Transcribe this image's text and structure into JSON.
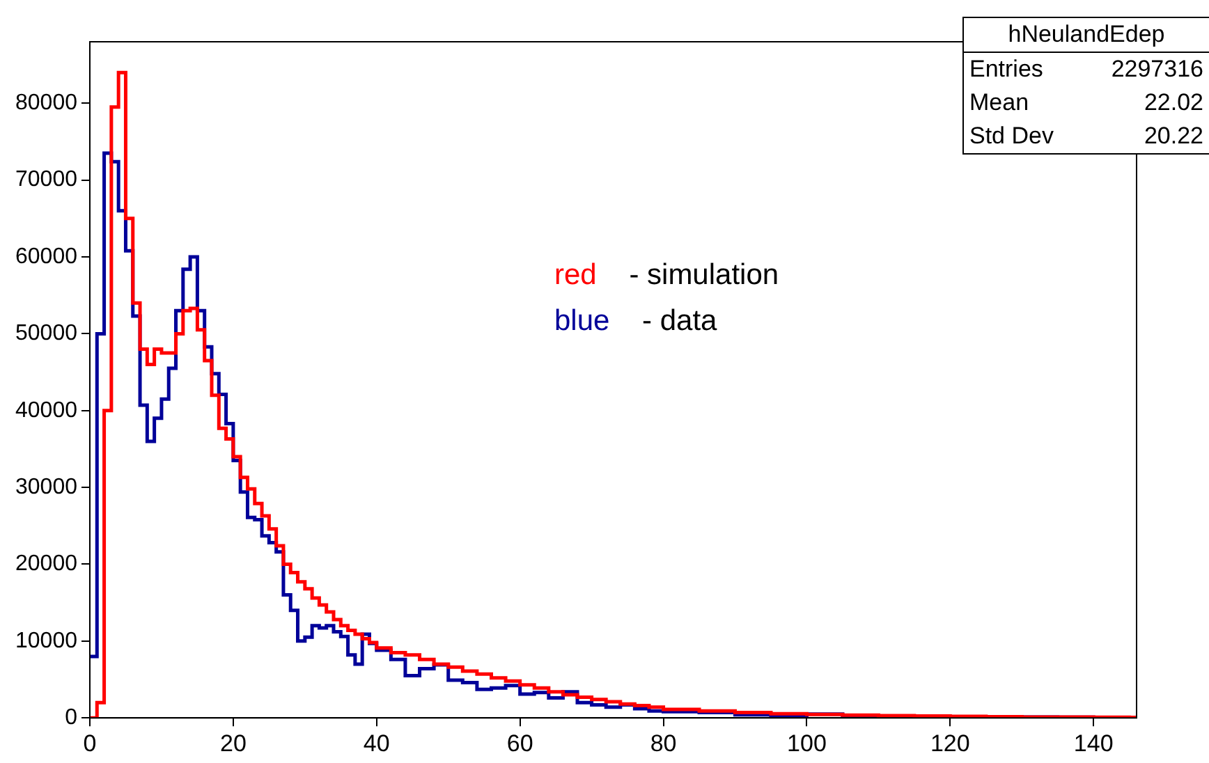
{
  "chart_data": {
    "type": "histogram",
    "bins": [
      0,
      1,
      2,
      3,
      4,
      5,
      6,
      7,
      8,
      9,
      10,
      11,
      12,
      13,
      14,
      15,
      16,
      17,
      18,
      19,
      20,
      21,
      22,
      23,
      24,
      25,
      26,
      27,
      28,
      29,
      30,
      31,
      32,
      33,
      34,
      35,
      36,
      37,
      38,
      39,
      40,
      42,
      44,
      46,
      48,
      50,
      52,
      54,
      56,
      58,
      60,
      62,
      64,
      66,
      68,
      70,
      72,
      74,
      76,
      78,
      80,
      85,
      90,
      95,
      100,
      105,
      110,
      115,
      120,
      125,
      130,
      135,
      140,
      145,
      146
    ],
    "series": [
      {
        "color": "#ff0000",
        "values": [
          0,
          2000,
          40000,
          79500,
          84000,
          65000,
          54000,
          48000,
          46000,
          48000,
          47500,
          47500,
          50000,
          53000,
          53300,
          50500,
          46500,
          42000,
          37700,
          36300,
          34000,
          31300,
          29800,
          27900,
          26300,
          24600,
          22400,
          20000,
          18900,
          17700,
          16800,
          15600,
          14700,
          13800,
          12800,
          12000,
          11400,
          10900,
          10300,
          9800,
          9100,
          8500,
          8200,
          7600,
          7000,
          6600,
          6100,
          5700,
          5200,
          4800,
          4300,
          3900,
          3400,
          3000,
          2700,
          2400,
          2100,
          1800,
          1600,
          1400,
          1100,
          900,
          700,
          550,
          450,
          350,
          300,
          250,
          200,
          150,
          120,
          100,
          80,
          60
        ]
      },
      {
        "color": "#000099",
        "values": [
          8000,
          50000,
          73500,
          72400,
          66000,
          60800,
          52300,
          40700,
          36000,
          39000,
          41500,
          45500,
          53000,
          58400,
          60000,
          53000,
          48300,
          44800,
          42100,
          38300,
          33500,
          29400,
          26100,
          25800,
          23700,
          22800,
          21600,
          16000,
          14000,
          10000,
          10500,
          12000,
          11700,
          12000,
          11200,
          10600,
          8200,
          7000,
          10900,
          9700,
          8800,
          7600,
          5500,
          6400,
          6900,
          4900,
          4600,
          3700,
          3900,
          4200,
          3100,
          3300,
          2600,
          3400,
          2000,
          1700,
          1400,
          1700,
          1200,
          900,
          800,
          700,
          400,
          300,
          500,
          300,
          200,
          100,
          100,
          150,
          100,
          80,
          60,
          50
        ]
      }
    ],
    "xlim": [
      0,
      146
    ],
    "xticks": [
      0,
      20,
      40,
      60,
      80,
      100,
      120,
      140
    ],
    "ylim": [
      0,
      88000
    ],
    "yticks": [
      0,
      10000,
      20000,
      30000,
      40000,
      50000,
      60000,
      70000,
      80000
    ],
    "grid": false,
    "annotations": [
      "hNeulandEdep",
      "Entries 2297316",
      "Mean 22.02",
      "Std Dev 20.22",
      "red - simulation",
      "blue - data"
    ]
  }
}
